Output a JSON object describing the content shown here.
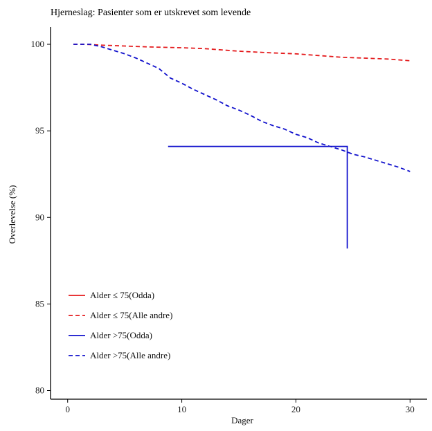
{
  "chart_data": {
    "type": "line",
    "title": "Hjerneslag: Pasienter som er utskrevet som levende",
    "xlabel": "Dager",
    "ylabel": "Overlevelse (%)",
    "xlim": [
      -1.5,
      31.5
    ],
    "ylim": [
      79.5,
      101
    ],
    "xticks": [
      0,
      10,
      20,
      30
    ],
    "yticks": [
      80,
      85,
      90,
      95,
      100
    ],
    "grid": false,
    "legend_position": "bottom-left",
    "series": [
      {
        "name": "Alder ≤ 75(Odda)",
        "color": "#e41a1c",
        "dash": "solid",
        "x": [],
        "y": []
      },
      {
        "name": "Alder ≤ 75(Alle andre)",
        "color": "#e41a1c",
        "dash": "dashed",
        "x": [
          0.5,
          1.5,
          3,
          5,
          7,
          10,
          12,
          15,
          18,
          20,
          22,
          24,
          26,
          28,
          30
        ],
        "y": [
          100,
          100,
          99.95,
          99.9,
          99.85,
          99.8,
          99.75,
          99.6,
          99.5,
          99.45,
          99.35,
          99.25,
          99.2,
          99.15,
          99.05
        ]
      },
      {
        "name": "Alder >75(Odda)",
        "color": "#1010cc",
        "dash": "solid",
        "x": [
          8.8,
          24.5,
          24.5
        ],
        "y": [
          94.1,
          94.1,
          88.2
        ]
      },
      {
        "name": "Alder >75(Alle andre)",
        "color": "#1010cc",
        "dash": "dashed",
        "x": [
          0.5,
          1,
          2,
          3,
          4,
          5,
          6,
          7,
          8,
          9,
          10,
          11,
          12,
          13,
          14,
          15,
          16,
          17,
          18,
          19,
          20,
          21,
          22,
          23,
          24,
          25,
          26,
          27,
          28,
          29,
          30
        ],
        "y": [
          100,
          100,
          100,
          99.85,
          99.65,
          99.45,
          99.2,
          98.9,
          98.6,
          98.05,
          97.75,
          97.4,
          97.1,
          96.8,
          96.45,
          96.2,
          95.9,
          95.55,
          95.3,
          95.1,
          94.8,
          94.6,
          94.3,
          94.1,
          93.9,
          93.65,
          93.5,
          93.3,
          93.1,
          92.9,
          92.65
        ]
      }
    ]
  }
}
